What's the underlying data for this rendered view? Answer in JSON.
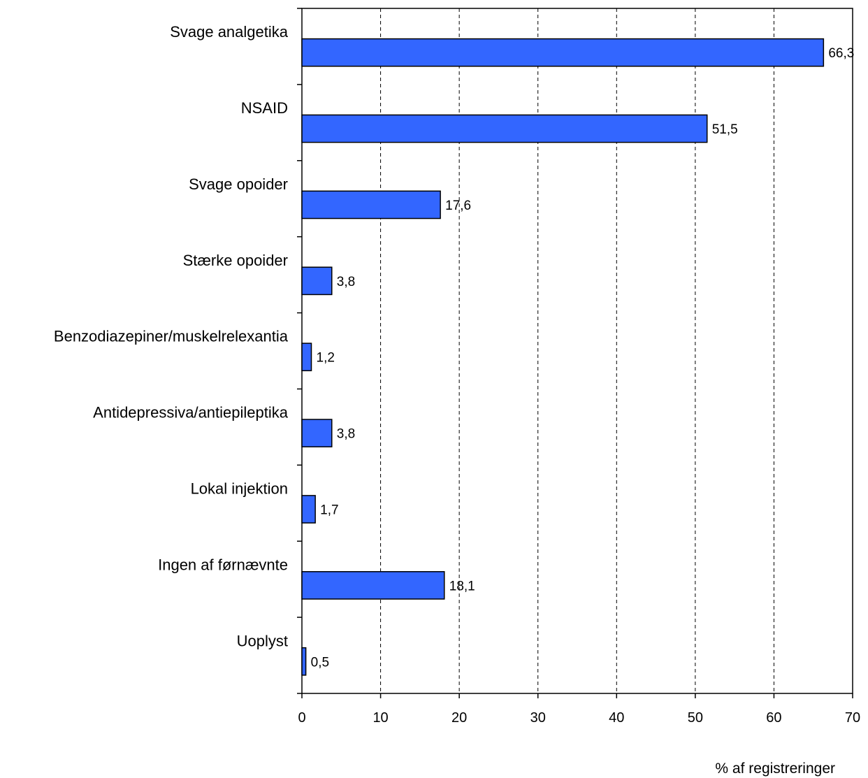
{
  "chart_data": {
    "type": "bar",
    "orientation": "horizontal",
    "categories": [
      "Svage analgetika",
      "NSAID",
      "Svage opoider",
      "Stærke opoider",
      "Benzodiazepiner/muskelrelexantia",
      "Antidepressiva/antiepileptika",
      "Lokal injektion",
      "Ingen af førnævnte",
      "Uoplyst"
    ],
    "values": [
      66.3,
      51.5,
      17.6,
      3.8,
      1.2,
      3.8,
      1.7,
      18.1,
      0.5
    ],
    "data_labels": [
      "66,3",
      "51,5",
      "17,6",
      "3,8",
      "1,2",
      "3,8",
      "1,7",
      "18,1",
      "0,5"
    ],
    "xlim": [
      0,
      70
    ],
    "xticks": [
      0,
      10,
      20,
      30,
      40,
      50,
      60,
      70
    ],
    "xtick_labels": [
      "0",
      "10",
      "20",
      "30",
      "40",
      "50",
      "60",
      "70"
    ],
    "xlabel": "% af registreringer",
    "ylabel": "",
    "title": "",
    "grid": "vertical dashed",
    "legend": "none",
    "bar_color": "#3366ff",
    "bar_edge_color": "#000000"
  }
}
